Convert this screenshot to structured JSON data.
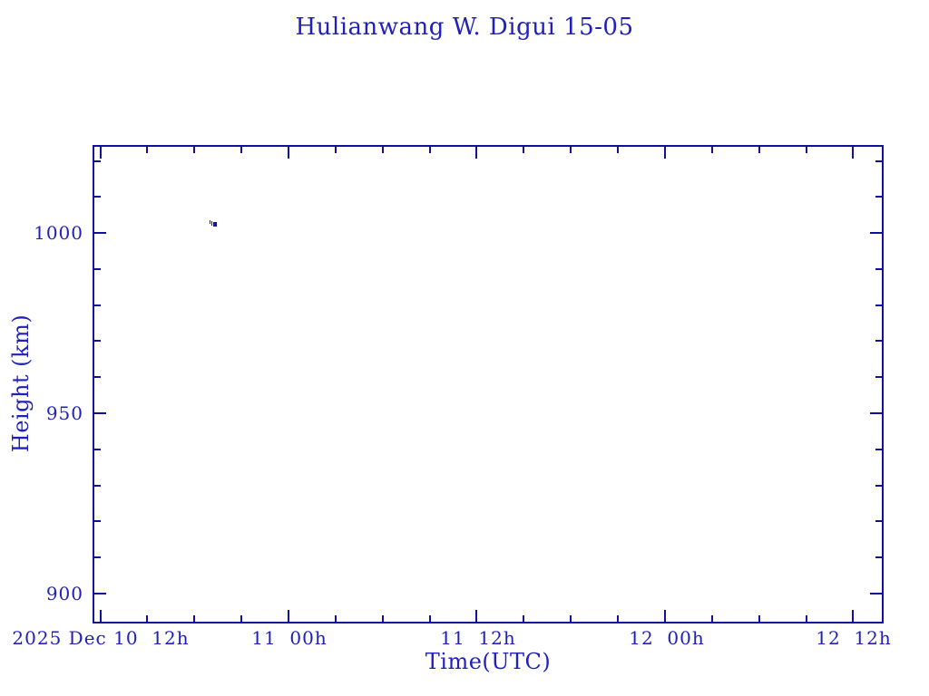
{
  "colors": {
    "line": "#10109a",
    "text": "#2121ba",
    "marker": "#1111b8",
    "background": "#ffffff"
  },
  "title": "Hulianwang W. Digui 15-05",
  "axes": {
    "x_label": "Time(UTC)",
    "y_label": "Height (km)",
    "x_tick_labels": [
      "2025 Dec 10  12h",
      "11  00h",
      "11  12h",
      "12  00h",
      "12  12h"
    ],
    "y_tick_labels": [
      "1000",
      "950",
      "900"
    ]
  },
  "chart_data": {
    "type": "scatter",
    "title": "Hulianwang W. Digui 15-05",
    "xlabel": "Time(UTC)",
    "ylabel": "Height (km)",
    "x_axis_start": "2025 Dec 10 12h UTC",
    "x_axis_end": "2025 Dec 12 12h UTC",
    "x_major_tick_labels": [
      "2025 Dec 10  12h",
      "11  00h",
      "11  12h",
      "12  00h",
      "12  12h"
    ],
    "x_major_tick_hours": [
      0,
      12,
      24,
      36,
      48
    ],
    "x_minor_tick_hours": [
      3,
      6,
      9,
      15,
      18,
      21,
      27,
      30,
      33,
      39,
      42,
      45
    ],
    "x_major_tick_interval_hours": 12,
    "x_minor_tick_interval_hours": 3,
    "xlim_hours": [
      -0.38,
      49.83
    ],
    "y_major_ticks": [
      900,
      950,
      1000
    ],
    "y_minor_ticks": [
      910,
      920,
      930,
      940,
      960,
      970,
      980,
      990,
      1010,
      1020
    ],
    "y_minor_tick_interval_km": 10,
    "ylim": [
      892.2,
      1023.9
    ],
    "grid": false,
    "legend": null,
    "marker_style": "small filled squares (cluster)",
    "points": [
      {
        "time_utc": "2025-12-10 19:05",
        "t_hours": 7.08,
        "height_km": 1003.0
      },
      {
        "time_utc": "2025-12-10 19:12",
        "t_hours": 7.2,
        "height_km": 1002.7
      },
      {
        "time_utc": "2025-12-10 19:19",
        "t_hours": 7.32,
        "height_km": 1002.4
      }
    ]
  }
}
